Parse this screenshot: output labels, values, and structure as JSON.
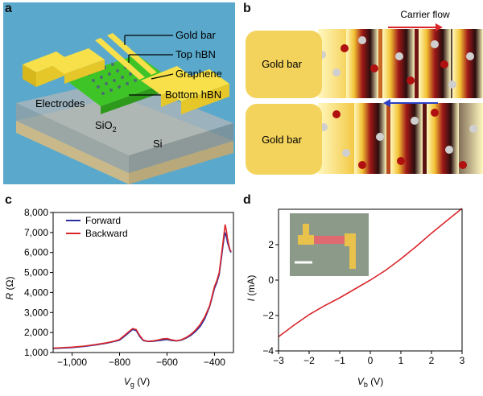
{
  "panel_a": {
    "letter": "a",
    "labels": {
      "gold_bar": "Gold bar",
      "top_hbn": "Top hBN",
      "graphene": "Graphene",
      "bottom_hbn": "Bottom hBN",
      "electrodes": "Electrodes",
      "sio2": "SiO",
      "sio2_sub": "2",
      "si": "Si"
    },
    "colors": {
      "background": "#5aa9cc",
      "gold": "#f0d51a",
      "graphene": "#49d628",
      "substrate": "#e8dcb5"
    }
  },
  "panel_b": {
    "letter": "b",
    "gold_bar_top": "Gold bar",
    "gold_bar_bottom": "Gold bar",
    "carrier_flow": "Carrier flow",
    "colors": {
      "gold": "#f4d35c",
      "arrow_top": "#d9262b",
      "arrow_bottom": "#2a3fc4"
    }
  },
  "panel_c": {
    "letter": "c",
    "ylabel_sym": "R",
    "ylabel_unit": "(Ω)",
    "xlabel_sym": "V",
    "xlabel_sub": "g",
    "xlabel_unit": "(V)",
    "legend": [
      "Forward",
      "Backward"
    ]
  },
  "panel_d": {
    "letter": "d",
    "ylabel_sym": "I",
    "ylabel_unit": "(mA)",
    "xlabel_sym": "V",
    "xlabel_sub": "b",
    "xlabel_unit": "(V)"
  },
  "chart_data": [
    {
      "type": "line",
      "panel": "c",
      "xlabel": "Vg (V)",
      "ylabel": "R (Ω)",
      "xlim": [
        -1080,
        -320
      ],
      "ylim": [
        1000,
        8000
      ],
      "x_ticks": [
        -1000,
        -800,
        -600,
        -400
      ],
      "x_tick_labels": [
        "−1,000",
        "−800",
        "−600",
        "−400"
      ],
      "y_ticks": [
        1000,
        2000,
        3000,
        4000,
        5000,
        6000,
        7000,
        8000
      ],
      "y_tick_labels": [
        "1,000",
        "2,000",
        "3,000",
        "4,000",
        "5,000",
        "6,000",
        "7,000",
        "8,000"
      ],
      "legend_position": "top-left",
      "series": [
        {
          "name": "Forward",
          "color": "#2b2f9e",
          "x": [
            -1080,
            -1000,
            -950,
            -900,
            -850,
            -820,
            -800,
            -780,
            -760,
            -745,
            -730,
            -715,
            -700,
            -680,
            -660,
            -640,
            -620,
            -600,
            -580,
            -560,
            -540,
            -520,
            -500,
            -480,
            -460,
            -440,
            -420,
            -400,
            -390,
            -380,
            -370,
            -360,
            -355,
            -350,
            -345,
            -340,
            -335,
            -330
          ],
          "y": [
            1200,
            1250,
            1300,
            1380,
            1480,
            1560,
            1620,
            1800,
            2000,
            2150,
            2100,
            1800,
            1600,
            1550,
            1560,
            1590,
            1620,
            1650,
            1600,
            1580,
            1620,
            1720,
            1850,
            2050,
            2300,
            2700,
            3300,
            4200,
            4500,
            4900,
            5800,
            6700,
            7000,
            6800,
            6500,
            6300,
            6100,
            6000
          ]
        },
        {
          "name": "Backward",
          "color": "#d9262b",
          "x": [
            -1080,
            -1000,
            -950,
            -900,
            -850,
            -820,
            -800,
            -780,
            -760,
            -745,
            -730,
            -715,
            -700,
            -680,
            -660,
            -640,
            -620,
            -600,
            -580,
            -560,
            -540,
            -520,
            -500,
            -480,
            -460,
            -440,
            -420,
            -400,
            -390,
            -380,
            -370,
            -360,
            -355,
            -350,
            -345,
            -340,
            -335,
            -330
          ],
          "y": [
            1220,
            1270,
            1320,
            1400,
            1500,
            1580,
            1650,
            1850,
            2050,
            2200,
            2150,
            1850,
            1620,
            1560,
            1580,
            1620,
            1680,
            1700,
            1630,
            1590,
            1640,
            1750,
            1900,
            2120,
            2400,
            2800,
            3350,
            4300,
            4600,
            5000,
            5950,
            6900,
            7400,
            7100,
            6700,
            6400,
            6150,
            6050
          ]
        }
      ]
    },
    {
      "type": "line",
      "panel": "d",
      "xlabel": "Vb (V)",
      "ylabel": "I (mA)",
      "xlim": [
        -3,
        3
      ],
      "ylim": [
        -4,
        4
      ],
      "x_ticks": [
        -3,
        -2,
        -1,
        0,
        1,
        2,
        3
      ],
      "x_tick_labels": [
        "−3",
        "−2",
        "−1",
        "0",
        "1",
        "2",
        "3"
      ],
      "y_ticks": [
        -4,
        -2,
        0,
        2
      ],
      "y_tick_labels": [
        "−4",
        "−2",
        "0",
        "2"
      ],
      "series": [
        {
          "color": "#d9262b",
          "x": [
            -3,
            -2.5,
            -2,
            -1.5,
            -1,
            -0.5,
            0,
            0.5,
            1,
            1.5,
            2,
            2.5,
            3
          ],
          "y": [
            -3.2,
            -2.55,
            -1.95,
            -1.45,
            -1.0,
            -0.5,
            0.0,
            0.55,
            1.2,
            1.9,
            2.65,
            3.35,
            4.05
          ]
        }
      ]
    }
  ]
}
